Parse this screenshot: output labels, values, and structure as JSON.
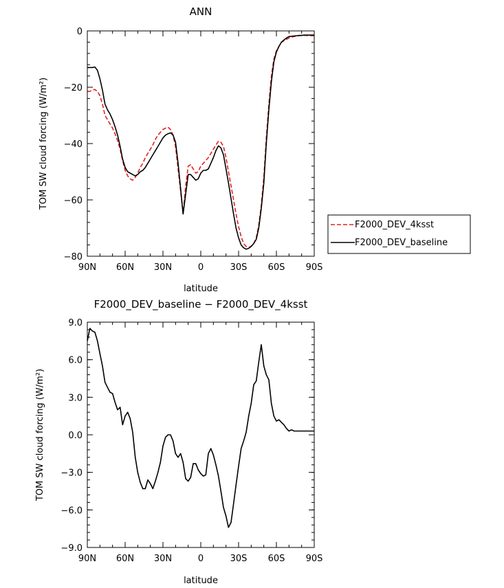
{
  "chart_data": [
    {
      "type": "line",
      "title": "ANN",
      "xlabel": "latitude",
      "ylabel": "TOM SW cloud forcing (W/m²)",
      "xlim": [
        90,
        -90
      ],
      "ylim": [
        -80,
        0
      ],
      "xticks": [
        90,
        60,
        30,
        0,
        -30,
        -60,
        -90
      ],
      "xtick_labels": [
        "90N",
        "60N",
        "30N",
        "0",
        "30S",
        "60S",
        "90S"
      ],
      "yticks": [
        0,
        -20,
        -40,
        -60,
        -80
      ],
      "ytick_labels": [
        "0",
        "−20",
        "−40",
        "−60",
        "−80"
      ],
      "legend": {
        "placement": "right",
        "entries": [
          "F2000_DEV_4ksst",
          "F2000_DEV_baseline"
        ]
      },
      "series": [
        {
          "name": "F2000_DEV_4ksst",
          "color": "#e02020",
          "dash": "dashed",
          "x": [
            90,
            88,
            86,
            84,
            82,
            80,
            78,
            76,
            74,
            72,
            70,
            68,
            66,
            64,
            62,
            60,
            58,
            56,
            54,
            52,
            50,
            48,
            46,
            44,
            42,
            40,
            38,
            36,
            34,
            32,
            30,
            28,
            26,
            24,
            22,
            20,
            18,
            16,
            14,
            12,
            10,
            8,
            6,
            4,
            2,
            0,
            -2,
            -4,
            -6,
            -8,
            -10,
            -12,
            -14,
            -16,
            -18,
            -20,
            -22,
            -24,
            -26,
            -28,
            -30,
            -32,
            -34,
            -36,
            -38,
            -40,
            -42,
            -44,
            -46,
            -48,
            -50,
            -52,
            -54,
            -56,
            -58,
            -60,
            -62,
            -64,
            -66,
            -68,
            -70,
            -72,
            -74,
            -76,
            -78,
            -80,
            -82,
            -84,
            -86,
            -88,
            -90
          ],
          "y": [
            -21.5,
            -21.5,
            -21,
            -20.8,
            -21.5,
            -23,
            -26,
            -30,
            -31.5,
            -33,
            -34.5,
            -36.5,
            -39,
            -42,
            -46,
            -49.5,
            -51.5,
            -52.5,
            -53,
            -52,
            -50.5,
            -48.5,
            -47,
            -45,
            -43.5,
            -42,
            -40.5,
            -38.5,
            -37,
            -36,
            -35,
            -34.5,
            -34.2,
            -35,
            -37,
            -41,
            -49,
            -57,
            -65,
            -55,
            -48,
            -47.5,
            -49,
            -50.5,
            -50,
            -48,
            -47,
            -46,
            -45,
            -43.5,
            -42,
            -40.5,
            -39.2,
            -39.5,
            -41,
            -45,
            -50,
            -55,
            -60,
            -65,
            -69.5,
            -73,
            -75.5,
            -76.5,
            -76.8,
            -76.5,
            -75.5,
            -73.5,
            -69,
            -62,
            -52,
            -38,
            -26,
            -16,
            -10,
            -7,
            -5.5,
            -4,
            -3.5,
            -3,
            -2.5,
            -2.2,
            -2,
            -1.8,
            -1.7,
            -1.6,
            -1.6,
            -1.6,
            -1.7,
            -1.7,
            -1.7
          ]
        },
        {
          "name": "F2000_DEV_baseline",
          "color": "#000000",
          "dash": "solid",
          "x": [
            90,
            88,
            86,
            84,
            82,
            80,
            78,
            76,
            74,
            72,
            70,
            68,
            66,
            64,
            62,
            60,
            58,
            56,
            54,
            52,
            50,
            48,
            46,
            44,
            42,
            40,
            38,
            36,
            34,
            32,
            30,
            28,
            26,
            24,
            22,
            20,
            18,
            16,
            14,
            12,
            10,
            8,
            6,
            4,
            2,
            0,
            -2,
            -4,
            -6,
            -8,
            -10,
            -12,
            -14,
            -16,
            -18,
            -20,
            -22,
            -24,
            -26,
            -28,
            -30,
            -32,
            -34,
            -36,
            -38,
            -40,
            -42,
            -44,
            -46,
            -48,
            -50,
            -52,
            -54,
            -56,
            -58,
            -60,
            -62,
            -64,
            -66,
            -68,
            -70,
            -72,
            -74,
            -76,
            -78,
            -80,
            -82,
            -84,
            -86,
            -88,
            -90
          ],
          "y": [
            -13,
            -13,
            -13,
            -12.8,
            -14,
            -17,
            -21,
            -26,
            -28,
            -29.5,
            -31.5,
            -34,
            -37,
            -41,
            -45.5,
            -48.5,
            -50,
            -50.5,
            -51,
            -51.5,
            -51,
            -50,
            -49.5,
            -48.5,
            -47,
            -45.5,
            -44,
            -42.5,
            -41,
            -39.5,
            -38,
            -37,
            -36.5,
            -36.2,
            -37,
            -39.5,
            -47,
            -56,
            -65,
            -58,
            -51,
            -51,
            -52,
            -53,
            -52.5,
            -50.5,
            -49.5,
            -49.5,
            -49,
            -47,
            -45,
            -42.5,
            -40.8,
            -41.5,
            -44,
            -49,
            -54,
            -59.5,
            -65,
            -70,
            -73.5,
            -76,
            -77,
            -77.5,
            -77.2,
            -76.5,
            -75.5,
            -74,
            -70,
            -63,
            -54,
            -40,
            -28,
            -18,
            -11,
            -7.5,
            -5.5,
            -4,
            -3.2,
            -2.5,
            -2,
            -1.9,
            -1.8,
            -1.7,
            -1.6,
            -1.6,
            -1.5,
            -1.5,
            -1.5,
            -1.5,
            -1.5
          ]
        }
      ]
    },
    {
      "type": "line",
      "title": "F2000_DEV_baseline − F2000_DEV_4ksst",
      "xlabel": "latitude",
      "ylabel": "TOM SW cloud forcing (W/m²)",
      "xlim": [
        90,
        -90
      ],
      "ylim": [
        -9,
        9
      ],
      "xticks": [
        90,
        60,
        30,
        0,
        -30,
        -60,
        -90
      ],
      "xtick_labels": [
        "90N",
        "60N",
        "30N",
        "0",
        "30S",
        "60S",
        "90S"
      ],
      "yticks": [
        9,
        6,
        3,
        0,
        -3,
        -6,
        -9
      ],
      "ytick_labels": [
        "9.0",
        "6.0",
        "3.0",
        "0.0",
        "−3.0",
        "−6.0",
        "−9.0"
      ],
      "series": [
        {
          "color": "#000000",
          "dash": "solid",
          "x": [
            90,
            88,
            86,
            84,
            82,
            80,
            78,
            76,
            74,
            72,
            70,
            68,
            66,
            64,
            62,
            60,
            58,
            56,
            54,
            52,
            50,
            48,
            46,
            44,
            42,
            40,
            38,
            36,
            34,
            32,
            30,
            28,
            26,
            24,
            22,
            20,
            18,
            16,
            14,
            12,
            10,
            8,
            6,
            4,
            2,
            0,
            -2,
            -4,
            -6,
            -8,
            -10,
            -12,
            -14,
            -16,
            -18,
            -20,
            -22,
            -24,
            -26,
            -28,
            -30,
            -32,
            -34,
            -36,
            -38,
            -40,
            -42,
            -44,
            -46,
            -48,
            -50,
            -52,
            -54,
            -56,
            -58,
            -60,
            -62,
            -64,
            -66,
            -68,
            -70,
            -72,
            -74,
            -76,
            -78,
            -80,
            -82,
            -84,
            -86,
            -88,
            -90
          ],
          "y": [
            7.5,
            8.5,
            8.3,
            8.2,
            7.5,
            6.5,
            5.5,
            4.2,
            3.8,
            3.4,
            3.3,
            2.6,
            2,
            2.2,
            0.8,
            1.5,
            1.8,
            1.3,
            0.2,
            -1.8,
            -3,
            -3.8,
            -4.3,
            -4.3,
            -3.6,
            -3.9,
            -4.3,
            -3.7,
            -3,
            -2.2,
            -0.9,
            -0.2,
            0,
            0,
            -0.5,
            -1.5,
            -1.8,
            -1.5,
            -2.2,
            -3.5,
            -3.7,
            -3.4,
            -2.3,
            -2.3,
            -2.8,
            -3.1,
            -3.3,
            -3.2,
            -1.5,
            -1.1,
            -1.6,
            -2.4,
            -3.3,
            -4.5,
            -5.8,
            -6.5,
            -7.4,
            -7,
            -5.5,
            -4,
            -2.5,
            -1.1,
            -0.5,
            0.2,
            1.5,
            2.5,
            4,
            4.3,
            5.8,
            7.2,
            5.5,
            4.8,
            4.4,
            2.5,
            1.5,
            1.1,
            1.2,
            1,
            0.8,
            0.5,
            0.3,
            0.4,
            0.3,
            0.3,
            0.3,
            0.3,
            0.3,
            0.3,
            0.3,
            0.3,
            0.3
          ]
        }
      ]
    }
  ]
}
